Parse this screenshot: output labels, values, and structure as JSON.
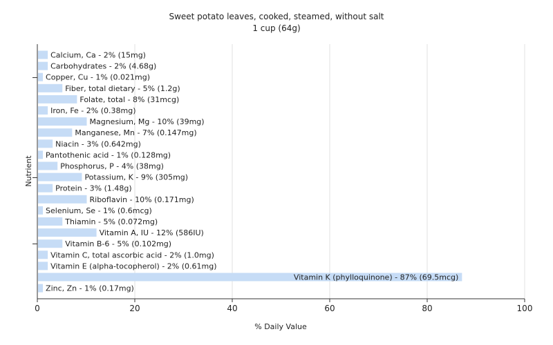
{
  "chart_data": {
    "type": "bar",
    "orientation": "horizontal",
    "title": "Sweet potato leaves, cooked, steamed, without salt",
    "subtitle": "1 cup (64g)",
    "xlabel": "% Daily Value",
    "ylabel": "Nutrient",
    "xlim": [
      0,
      100
    ],
    "xticks": [
      "0",
      "20",
      "40",
      "60",
      "80",
      "100"
    ],
    "grid": "vertical",
    "bar_color": "#c6dcf6",
    "categories": [
      "Calcium, Ca",
      "Carbohydrates",
      "Copper, Cu",
      "Fiber, total dietary",
      "Folate, total",
      "Iron, Fe",
      "Magnesium, Mg",
      "Manganese, Mn",
      "Niacin",
      "Pantothenic acid",
      "Phosphorus, P",
      "Potassium, K",
      "Protein",
      "Riboflavin",
      "Selenium, Se",
      "Thiamin",
      "Vitamin A, IU",
      "Vitamin B-6",
      "Vitamin C, total ascorbic acid",
      "Vitamin E (alpha-tocopherol)",
      "Vitamin K (phylloquinone)",
      "Zinc, Zn"
    ],
    "values": [
      2,
      2,
      1,
      5,
      8,
      2,
      10,
      7,
      3,
      1,
      4,
      9,
      3,
      10,
      1,
      5,
      12,
      5,
      2,
      2,
      87,
      1
    ],
    "labels": [
      "Calcium, Ca - 2% (15mg)",
      "Carbohydrates - 2% (4.68g)",
      "Copper, Cu - 1% (0.021mg)",
      "Fiber, total dietary - 5% (1.2g)",
      "Folate, total - 8% (31mcg)",
      "Iron, Fe - 2% (0.38mg)",
      "Magnesium, Mg - 10% (39mg)",
      "Manganese, Mn - 7% (0.147mg)",
      "Niacin - 3% (0.642mg)",
      "Pantothenic acid - 1% (0.128mg)",
      "Phosphorus, P - 4% (38mg)",
      "Potassium, K - 9% (305mg)",
      "Protein - 3% (1.48g)",
      "Riboflavin - 10% (0.171mg)",
      "Selenium, Se - 1% (0.6mcg)",
      "Thiamin - 5% (0.072mg)",
      "Vitamin A, IU - 12% (586IU)",
      "Vitamin B-6 - 5% (0.102mg)",
      "Vitamin C, total ascorbic acid - 2% (1.0mg)",
      "Vitamin E (alpha-tocopherol) - 2% (0.61mg)",
      "Vitamin K (phylloquinone) - 87% (69.5mcg)",
      "Zinc, Zn - 1% (0.17mg)"
    ]
  }
}
